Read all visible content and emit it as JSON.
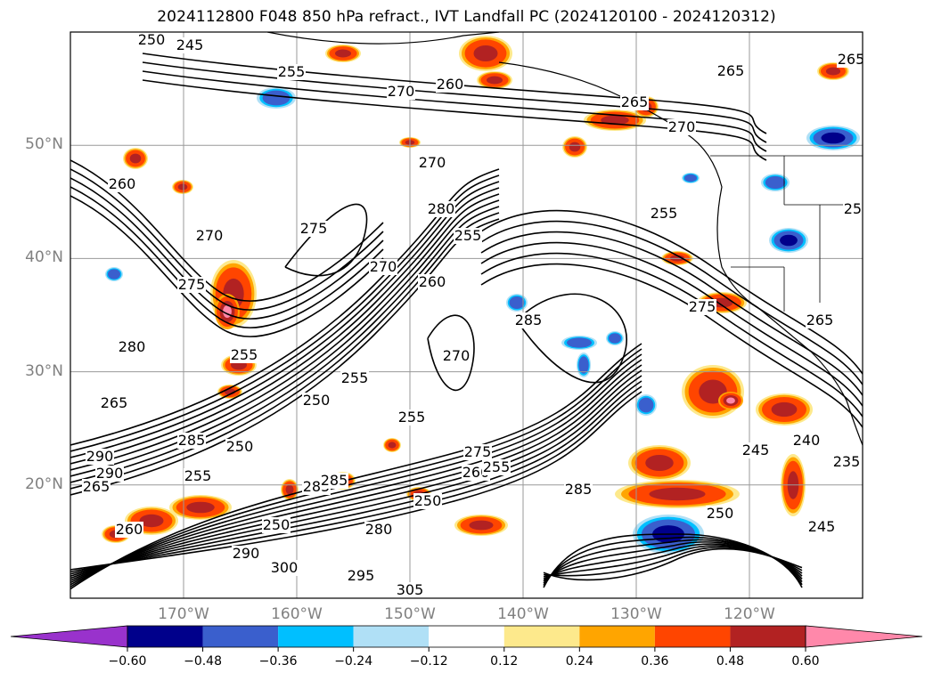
{
  "title": "2024112800 F048 850 hPa refract., IVT Landfall PC (2024120100 - 2024120312)",
  "map_data": {
    "projection": "equirectangular",
    "lon_range": [
      -180,
      -110
    ],
    "lat_range": [
      10,
      60
    ],
    "grid": true,
    "lat_labels": [
      "50°N",
      "40°N",
      "30°N",
      "20°N"
    ],
    "lon_labels": [
      "170°W",
      "160°W",
      "150°W",
      "140°W",
      "130°W",
      "120°W"
    ],
    "contour_labels": [
      "250",
      "245",
      "255",
      "270",
      "260",
      "265",
      "270",
      "265",
      "270",
      "265",
      "260",
      "280",
      "270",
      "275",
      "270",
      "275",
      "255",
      "280",
      "260",
      "285",
      "255",
      "255",
      "270",
      "255",
      "255",
      "250",
      "275",
      "285",
      "290",
      "265",
      "250",
      "255",
      "260",
      "285",
      "255",
      "250",
      "285",
      "280",
      "290",
      "250",
      "300",
      "295",
      "305",
      "285",
      "250",
      "245",
      "240",
      "235",
      "245",
      "255",
      "275",
      "265",
      "260",
      "290",
      "265"
    ],
    "colorbar": {
      "ticks": [
        "−0.60",
        "−0.48",
        "−0.36",
        "−0.24",
        "−0.12",
        "0.12",
        "0.24",
        "0.36",
        "0.48",
        "0.60"
      ],
      "colors": [
        "#9932cc",
        "#00008b",
        "#3a5fcd",
        "#00bfff",
        "#b0e0f6",
        "#ffffff",
        "#fde98c",
        "#ffa500",
        "#ff4500",
        "#b22222",
        "#ff88aa"
      ],
      "extend": "both"
    }
  }
}
